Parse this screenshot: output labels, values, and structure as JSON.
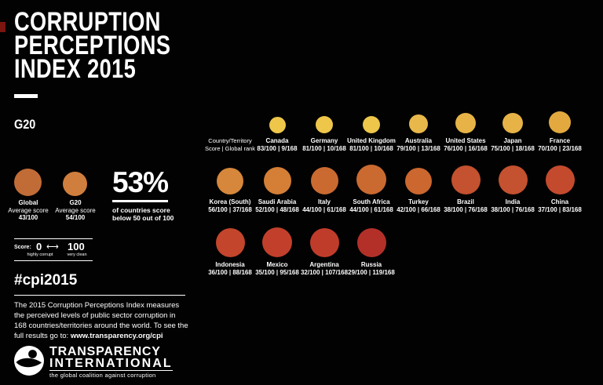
{
  "page": {
    "background": "#020202",
    "text_color": "#ffffff"
  },
  "header": {
    "title_line1": "CORRUPTION",
    "title_line2": "PERCEPTIONS",
    "title_line3": "INDEX 2015",
    "subtitle": "G20"
  },
  "averages": [
    {
      "label": "Global",
      "sub": "Average score",
      "score": "43/100",
      "color": "#C16C37",
      "size": 35
    },
    {
      "label": "G20",
      "sub": "Average score",
      "score": "54/100",
      "color": "#D07E3D",
      "size": 31
    }
  ],
  "stat": {
    "value": "53%",
    "caption_line1": "of countries score",
    "caption_line2": "below 50 out of 100"
  },
  "scale": {
    "label": "Score:",
    "min": "0",
    "max": "100",
    "arrow": "⟷",
    "min_caption": "highly corrupt",
    "max_caption": "very clean"
  },
  "grid_header": {
    "line1": "Country/Territory",
    "line2": "Score | Global rank"
  },
  "countries": [
    {
      "name": "Canada",
      "stats": "83/100 | 9/168",
      "color": "#EEC64A",
      "size": 21
    },
    {
      "name": "Germany",
      "stats": "81/100 | 10/168",
      "color": "#EEC64A",
      "size": 22
    },
    {
      "name": "United Kingdom",
      "stats": "81/100 | 10/168",
      "color": "#EEC64A",
      "size": 22
    },
    {
      "name": "Australia",
      "stats": "79/100 | 13/168",
      "color": "#E9B84B",
      "size": 24
    },
    {
      "name": "United States",
      "stats": "76/100 | 16/168",
      "color": "#E7B347",
      "size": 26
    },
    {
      "name": "Japan",
      "stats": "75/100 | 18/168",
      "color": "#E7B347",
      "size": 26
    },
    {
      "name": "France",
      "stats": "70/100 | 23/168",
      "color": "#E3A93F",
      "size": 28
    },
    {
      "name": "Korea (South)",
      "stats": "56/100 | 37/168",
      "color": "#D6873B",
      "size": 34
    },
    {
      "name": "Saudi Arabia",
      "stats": "52/100 | 48/168",
      "color": "#D47E36",
      "size": 35
    },
    {
      "name": "Italy",
      "stats": "44/100 | 61/168",
      "color": "#CA6A31",
      "size": 35
    },
    {
      "name": "South Africa",
      "stats": "44/100 | 61/168",
      "color": "#CA6A31",
      "size": 38
    },
    {
      "name": "Turkey",
      "stats": "42/100 | 66/168",
      "color": "#CB672F",
      "size": 34
    },
    {
      "name": "Brazil",
      "stats": "38/100 | 76/168",
      "color": "#C4512F",
      "size": 37
    },
    {
      "name": "India",
      "stats": "38/100 | 76/168",
      "color": "#C4512F",
      "size": 37
    },
    {
      "name": "China",
      "stats": "37/100 | 83/168",
      "color": "#C44A2E",
      "size": 37
    },
    {
      "name": "Indonesia",
      "stats": "36/100 | 88/168",
      "color": "#C2452C",
      "size": 37
    },
    {
      "name": "Mexico",
      "stats": "35/100 | 95/168",
      "color": "#C2402B",
      "size": 38
    },
    {
      "name": "Argentina",
      "stats": "32/100 | 107/168",
      "color": "#C03C2A",
      "size": 37
    },
    {
      "name": "Russia",
      "stats": "29/100 | 119/168",
      "color": "#B23028",
      "size": 37
    }
  ],
  "footer": {
    "hashtag": "#cpi2015",
    "description_line1": "The 2015 Corruption Perceptions Index measures",
    "description_line2": "the perceived levels of public sector corruption in",
    "description_line3": "168 countries/territories around the world. To see the",
    "link_prefix": "full results go to: ",
    "link": "www.transparency.org/cpi",
    "logo": {
      "name_line1": "TRANSPARENCY",
      "name_line2": "INTERNATIONAL",
      "tagline": "the global coalition against corruption"
    }
  },
  "chart_data": {
    "type": "table",
    "title": "Corruption Perceptions Index 2015 — G20",
    "columns": [
      "Country/Territory",
      "Score (out of 100)",
      "Global rank (out of 168)"
    ],
    "rows": [
      [
        "Canada",
        83,
        9
      ],
      [
        "Germany",
        81,
        10
      ],
      [
        "United Kingdom",
        81,
        10
      ],
      [
        "Australia",
        79,
        13
      ],
      [
        "United States",
        76,
        16
      ],
      [
        "Japan",
        75,
        18
      ],
      [
        "France",
        70,
        23
      ],
      [
        "Korea (South)",
        56,
        37
      ],
      [
        "Saudi Arabia",
        52,
        48
      ],
      [
        "Italy",
        44,
        61
      ],
      [
        "South Africa",
        44,
        61
      ],
      [
        "Turkey",
        42,
        66
      ],
      [
        "Brazil",
        38,
        76
      ],
      [
        "India",
        38,
        76
      ],
      [
        "China",
        37,
        83
      ],
      [
        "Indonesia",
        36,
        88
      ],
      [
        "Mexico",
        35,
        95
      ],
      [
        "Argentina",
        32,
        107
      ],
      [
        "Russia",
        29,
        119
      ]
    ],
    "annotations": {
      "global_average_score": 43,
      "g20_average_score": 54,
      "share_below_50": "53%",
      "scale": "0 = highly corrupt, 100 = very clean"
    },
    "legend_position": "none",
    "color_encoding": "yellow (clean) to dark red (corrupt); bubble size grows as score falls"
  }
}
